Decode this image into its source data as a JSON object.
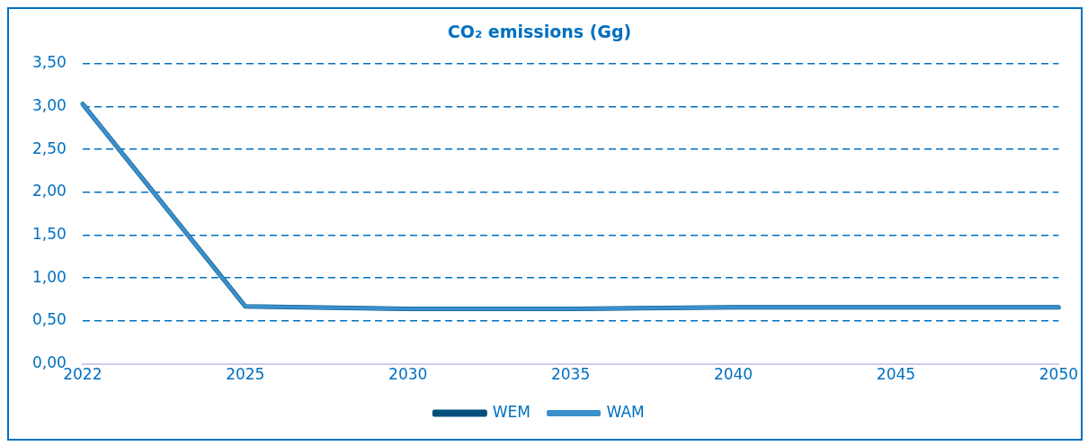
{
  "chart_data": {
    "type": "line",
    "title": "CO₂ emissions (Gg)",
    "categories": [
      "2022",
      "2025",
      "2030",
      "2035",
      "2040",
      "2045",
      "2050"
    ],
    "series": [
      {
        "name": "WEM",
        "color": "#004e7a",
        "values": [
          3.03,
          0.67,
          0.64,
          0.64,
          0.66,
          0.66,
          0.66
        ]
      },
      {
        "name": "WAM",
        "color": "#3a8fcc",
        "values": [
          3.03,
          0.67,
          0.64,
          0.64,
          0.66,
          0.66,
          0.66
        ]
      }
    ],
    "ylim": [
      0,
      3.5
    ],
    "yticks": [
      {
        "value": 0,
        "label": "0,00"
      },
      {
        "value": 0.5,
        "label": "0,50"
      },
      {
        "value": 1,
        "label": "1,00"
      },
      {
        "value": 1.5,
        "label": "1,50"
      },
      {
        "value": 2,
        "label": "2,00"
      },
      {
        "value": 2.5,
        "label": "2,50"
      },
      {
        "value": 3,
        "label": "3,00"
      },
      {
        "value": 3.5,
        "label": "3,50"
      }
    ],
    "grid": "y",
    "legend": "bottom",
    "marker": "none",
    "line_style": "solid"
  }
}
